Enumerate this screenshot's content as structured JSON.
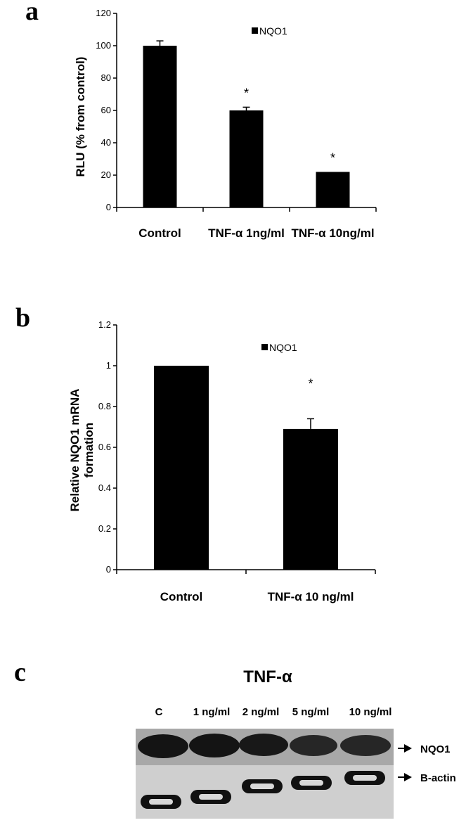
{
  "panel_labels": [
    "a",
    "b",
    "c"
  ],
  "chart_data": [
    {
      "type": "bar",
      "panel": "a",
      "categories": [
        "Control",
        "TNF-α 1ng/ml",
        "TNF-α 10ng/ml"
      ],
      "series": [
        {
          "name": "NQO1",
          "values": [
            100,
            60,
            22
          ],
          "errors": [
            3,
            2,
            0
          ]
        }
      ],
      "significance": [
        "",
        "*",
        "*"
      ],
      "ylabel": "RLU (% from control)",
      "yticks": [
        "0",
        "20",
        "40",
        "60",
        "80",
        "100",
        "120"
      ],
      "ylim": [
        0,
        120
      ],
      "legend": "top-right",
      "grid": false
    },
    {
      "type": "bar",
      "panel": "b",
      "categories": [
        "Control",
        "TNF-α 10 ng/ml"
      ],
      "series": [
        {
          "name": "NQO1",
          "values": [
            1.0,
            0.69
          ],
          "errors": [
            0,
            0.05
          ]
        }
      ],
      "significance": [
        "",
        "*"
      ],
      "ylabel_lines": [
        "Relative NQO1 mRNA",
        "formation"
      ],
      "yticks": [
        "0",
        "0.2",
        "0.4",
        "0.6",
        "0.8",
        "1",
        "1.2"
      ],
      "ylim": [
        0,
        1.2
      ],
      "legend": "top-right",
      "grid": false
    }
  ],
  "western_blot": {
    "title": "TNF-α",
    "lanes": [
      "C",
      "1 ng/ml",
      "2 ng/ml",
      "5 ng/ml",
      "10 ng/ml"
    ],
    "markers": [
      "NQO1",
      "B-actin"
    ],
    "arrow_glyph": "▶"
  }
}
